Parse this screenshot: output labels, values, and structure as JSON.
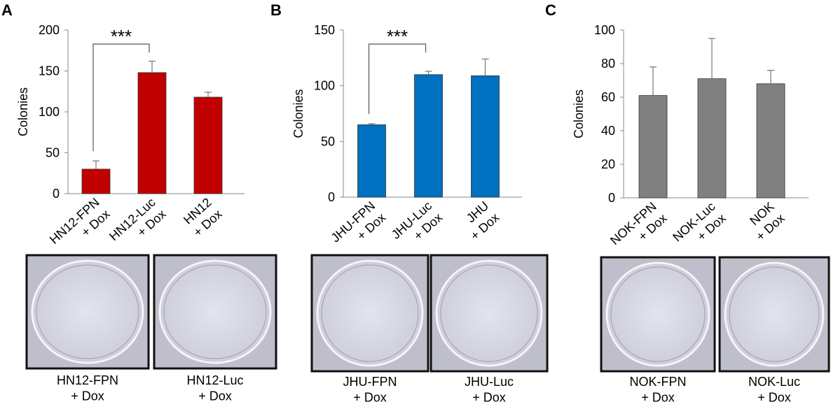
{
  "chart_data": [
    {
      "type": "bar",
      "panel_label": "A",
      "y_label": "Colonies",
      "color": "#c00000",
      "categories": [
        "HN12-FPN\n+ Dox",
        "HN12-Luc\n+ Dox",
        "HN12\n+ Dox"
      ],
      "values": [
        30,
        148,
        118
      ],
      "errors": [
        10,
        14,
        6
      ],
      "ylim": [
        0,
        200
      ],
      "yticks": [
        0,
        50,
        100,
        150,
        200
      ],
      "annotation": "***",
      "image_captions": [
        "HN12-FPN\n+ Dox",
        "HN12-Luc\n+ Dox"
      ]
    },
    {
      "type": "bar",
      "panel_label": "B",
      "y_label": "Colonies",
      "color": "#0070c0",
      "categories": [
        "JHU-FPN\n+ Dox",
        "JHU-Luc\n+ Dox",
        "JHU\n+ Dox"
      ],
      "values": [
        65,
        110,
        109
      ],
      "errors": [
        1,
        3,
        15
      ],
      "ylim": [
        0,
        150
      ],
      "yticks": [
        0,
        50,
        100,
        150
      ],
      "annotation": "***",
      "image_captions": [
        "JHU-FPN\n+ Dox",
        "JHU-Luc\n+ Dox"
      ]
    },
    {
      "type": "bar",
      "panel_label": "C",
      "y_label": "Colonies",
      "color": "#808080",
      "categories": [
        "NOK-FPN\n+ Dox",
        "NOK-Luc\n+ Dox",
        "NOK\n+ Dox"
      ],
      "values": [
        61,
        71,
        68
      ],
      "errors": [
        17,
        24,
        8
      ],
      "ylim": [
        0,
        100
      ],
      "yticks": [
        0,
        20,
        40,
        60,
        80,
        100
      ],
      "image_captions": [
        "NOK-FPN\n+ Dox",
        "NOK-Luc\n+ Dox"
      ]
    }
  ]
}
